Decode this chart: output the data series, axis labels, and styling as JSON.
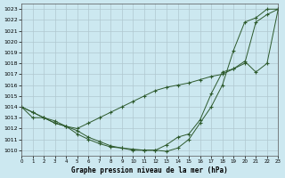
{
  "title": "Graphe pression niveau de la mer (hPa)",
  "background_color": "#cce8f0",
  "grid_color": "#b0c8d0",
  "line_color": "#2d5a2d",
  "xlim": [
    0,
    23
  ],
  "ylim": [
    1009.5,
    1023.5
  ],
  "yticks": [
    1010,
    1011,
    1012,
    1013,
    1014,
    1015,
    1016,
    1017,
    1018,
    1019,
    1020,
    1021,
    1022,
    1023
  ],
  "xticks": [
    0,
    1,
    2,
    3,
    4,
    5,
    6,
    7,
    8,
    9,
    10,
    11,
    12,
    13,
    14,
    15,
    16,
    17,
    18,
    19,
    20,
    21,
    22,
    23
  ],
  "series": [
    {
      "x": [
        0,
        1,
        2,
        3,
        4,
        5,
        6,
        7,
        8,
        9,
        10,
        11,
        12,
        13,
        14,
        15,
        16,
        17,
        18,
        19,
        20,
        21,
        22,
        23
      ],
      "y": [
        1014,
        1013.5,
        1013,
        1012.7,
        1012.2,
        1011.5,
        1011.0,
        1010.6,
        1010.3,
        1010.2,
        1010.1,
        1010.0,
        1010.0,
        1009.9,
        1010.2,
        1011.0,
        1012.5,
        1014.0,
        1016.0,
        1019.2,
        1021.8,
        1022.2,
        1023.0,
        1023.0
      ]
    },
    {
      "x": [
        0,
        1,
        2,
        3,
        4,
        5,
        6,
        7,
        8,
        9,
        10,
        11,
        12,
        13,
        14,
        15,
        16,
        17,
        18,
        19,
        20,
        21,
        22,
        23
      ],
      "y": [
        1014,
        1013.5,
        1013,
        1012.5,
        1012.2,
        1012.0,
        1012.5,
        1013.0,
        1013.5,
        1014.0,
        1014.5,
        1015.0,
        1015.5,
        1015.8,
        1016.0,
        1016.2,
        1016.5,
        1016.8,
        1017.0,
        1017.5,
        1018.0,
        1021.8,
        1022.5,
        1023.0
      ]
    },
    {
      "x": [
        0,
        1,
        2,
        3,
        4,
        5,
        6,
        7,
        8,
        9,
        10,
        11,
        12,
        13,
        14,
        15,
        16,
        17,
        18,
        19,
        20,
        21,
        22,
        23
      ],
      "y": [
        1014,
        1013.0,
        1013.0,
        1012.5,
        1012.2,
        1011.8,
        1011.2,
        1010.8,
        1010.4,
        1010.2,
        1010.0,
        1010.0,
        1010.0,
        1010.5,
        1011.2,
        1011.5,
        1012.8,
        1015.2,
        1017.2,
        1017.5,
        1018.2,
        1017.2,
        1018.0,
        1023.0
      ]
    }
  ]
}
